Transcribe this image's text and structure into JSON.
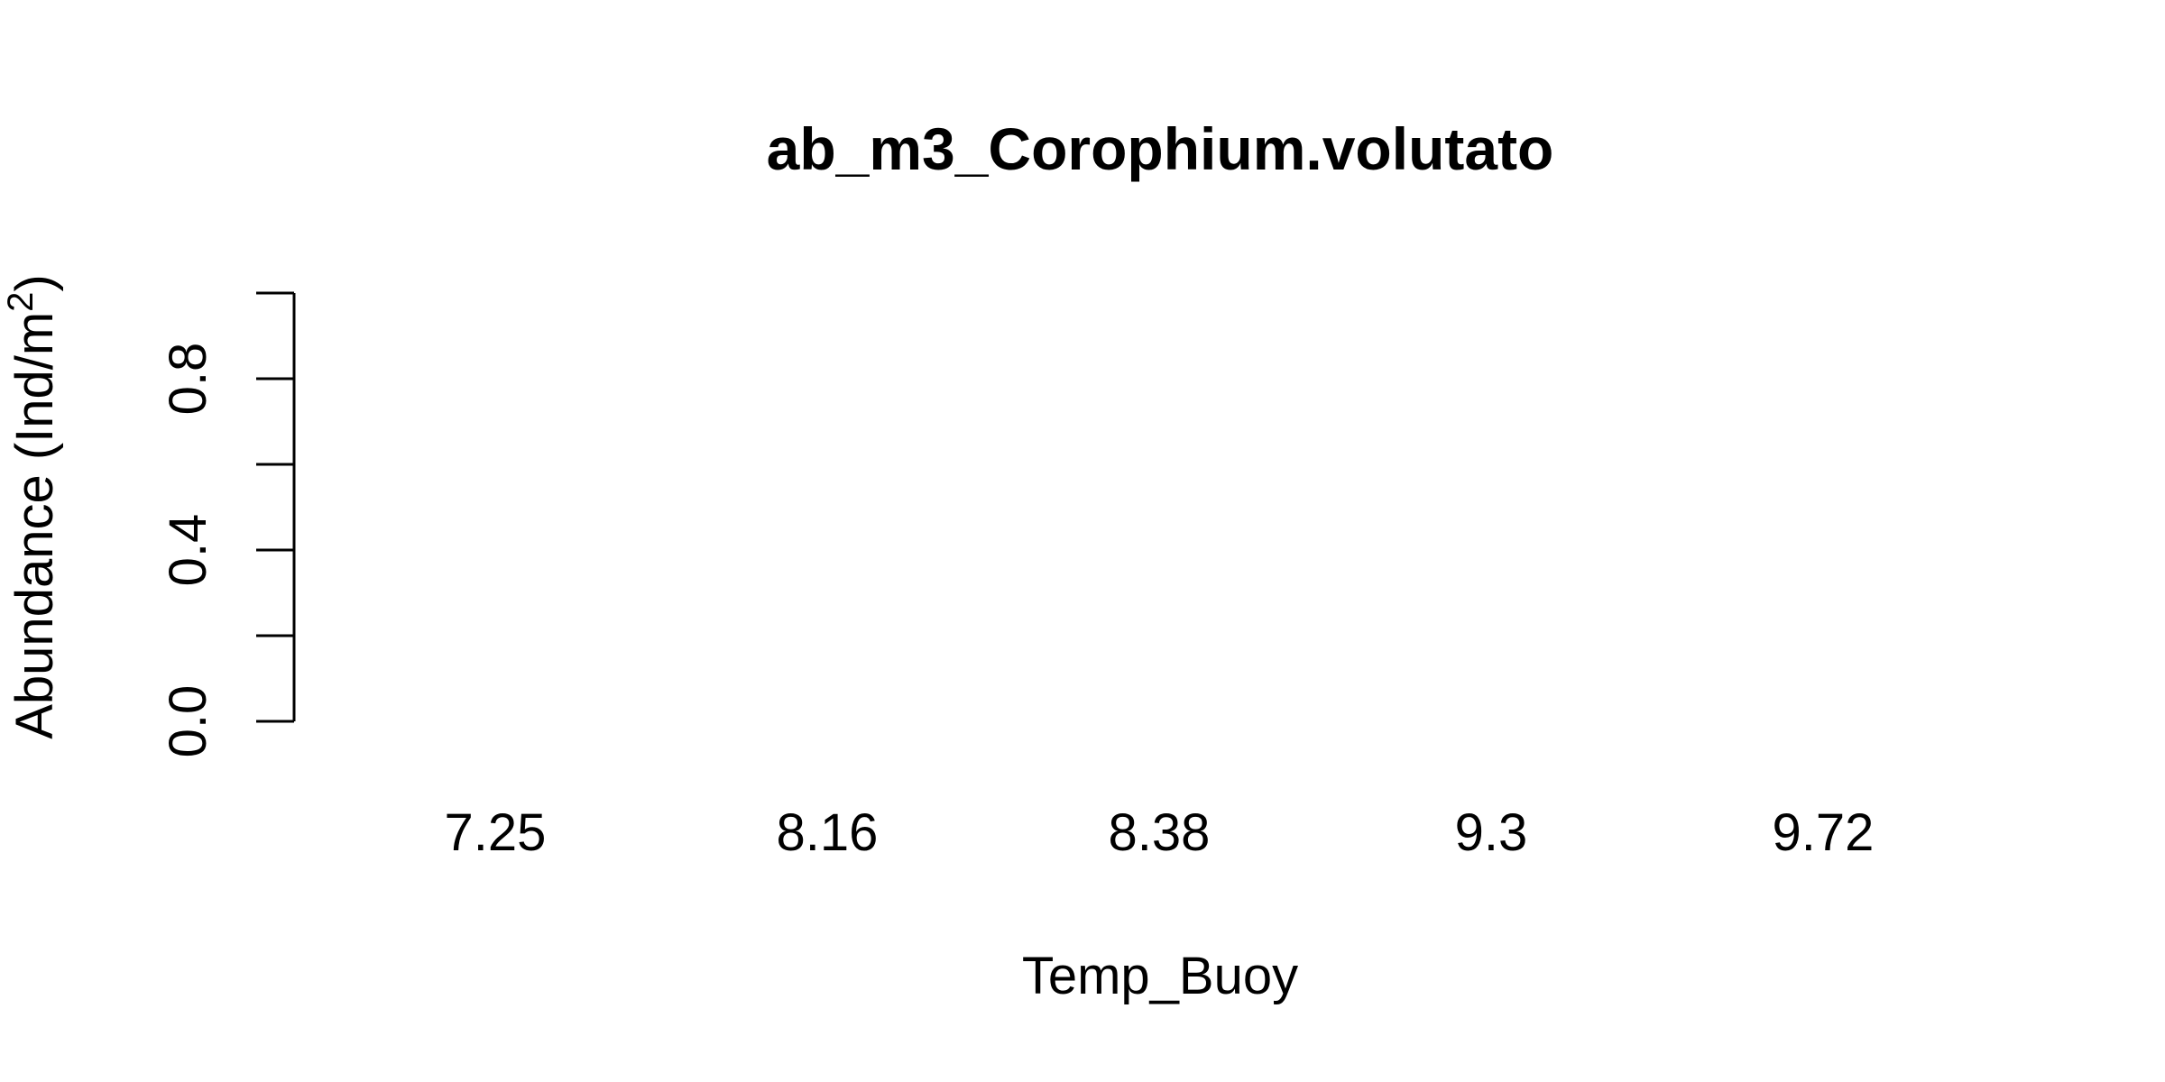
{
  "chart_data": {
    "type": "bar",
    "title": "ab_m3_Corophium.volutato",
    "xlabel": "Temp_Buoy",
    "ylabel": "Abundance (Ind/m",
    "ylabel_superscript": "2",
    "ylabel_suffix": ")",
    "categories": [
      "7.25",
      "8.16",
      "8.38",
      "9.3",
      "9.72"
    ],
    "values": [
      0,
      0,
      0,
      0,
      0
    ],
    "ylim": [
      0,
      1
    ],
    "yticks": [
      "0.0",
      "0.2",
      "0.4",
      "0.6",
      "0.8",
      "1.0"
    ],
    "ytick_labels": [
      "0.0",
      "",
      "0.4",
      "",
      "0.8",
      ""
    ],
    "grid": false,
    "legend": "none"
  }
}
